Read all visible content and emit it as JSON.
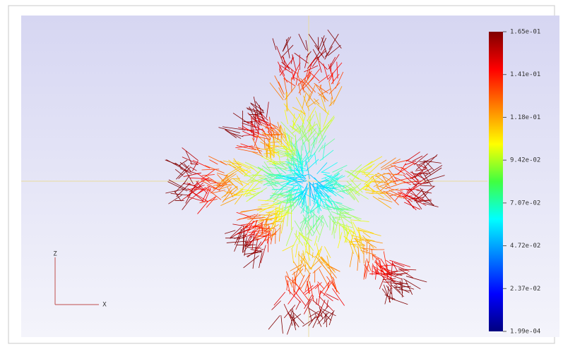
{
  "colorbar": {
    "labels": [
      "1.65e-01",
      "1.41e-01",
      "1.18e-01",
      "9.42e-02",
      "7.07e-02",
      "4.72e-02",
      "2.37e-02",
      "1.99e-04"
    ]
  },
  "axes_triad": {
    "vertical": "Z",
    "horizontal": "X"
  }
}
